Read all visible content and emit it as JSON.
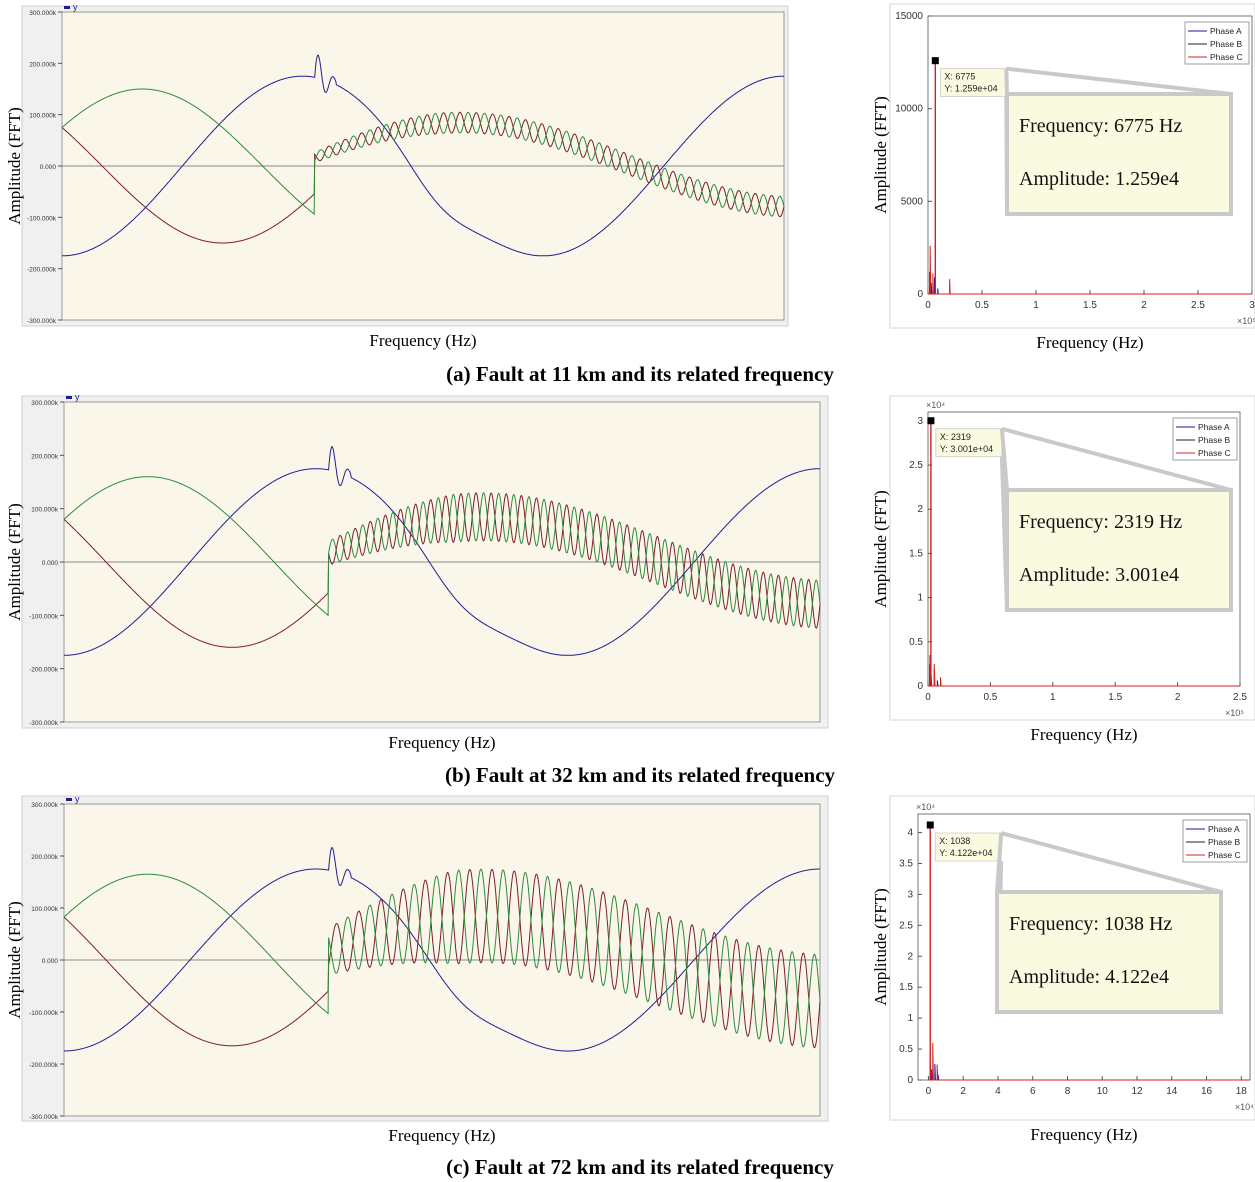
{
  "figure": {
    "panels": [
      {
        "caption": "(a) Fault at 11 km and its related frequency"
      },
      {
        "caption": "(b) Fault at 32 km and its related frequency"
      },
      {
        "caption": "(c) Fault at 72 km and its related frequency"
      }
    ]
  },
  "colors": {
    "phase_a": "#1f1f8f",
    "phase_b": "#7a1f2a",
    "phase_c": "#2e8b3a",
    "fft_a": "#1a1a9a",
    "fft_b": "#222222",
    "fft_c": "#d42020",
    "plot_bg": "#fbf6ea"
  },
  "chart_data": [
    {
      "type": "line",
      "ylabel": "Amplitude (FFT)",
      "xlabel": "Frequency (Hz)",
      "y_tick_labels": [
        "300.000k",
        "200.000k",
        "100.000k",
        "0.000",
        "-100.000k",
        "-200.000k",
        "-300.000k"
      ],
      "ylim": [
        -300,
        300
      ],
      "y_units": "k",
      "legend": "y",
      "series": [
        {
          "color_key": "phase_a",
          "amplitude": 175,
          "phase_deg": -90
        },
        {
          "color_key": "phase_b",
          "amplitude": 150,
          "phase_deg": 150
        },
        {
          "color_key": "phase_c",
          "amplitude": 150,
          "phase_deg": 30
        }
      ],
      "fault_fraction": 0.35,
      "osc_cycles": 44,
      "osc_amplitude": 20,
      "grid": false
    },
    {
      "type": "line",
      "xlabel": "Frequency (Hz)",
      "ylabel": "Amplitude (FFT)",
      "x_tick_labels": [
        "0",
        "0.5",
        "1",
        "1.5",
        "2",
        "2.5",
        "3"
      ],
      "x_multiplier": "×10⁵",
      "xlim": [
        0,
        3
      ],
      "y_tick_labels": [
        "0",
        "5000",
        "10000",
        "15000"
      ],
      "ylim": [
        0,
        15000
      ],
      "y_multiplier": "",
      "legend": [
        "Phase A",
        "Phase B",
        "Phase C"
      ],
      "legend_position": "top-right",
      "peak_x": 0.06775,
      "peak_y": 12590,
      "datatip": [
        "X: 6775",
        "Y: 1.259e+04"
      ],
      "annotation": [
        "Frequency: 6775 Hz",
        "Amplitude: 1.259e4"
      ],
      "secondary_spikes": [
        [
          0.02,
          2600
        ],
        [
          0.045,
          1100
        ],
        [
          0.2,
          800
        ]
      ]
    },
    {
      "type": "line",
      "ylabel": "Amplitude (FFT)",
      "xlabel": "Frequency (Hz)",
      "y_tick_labels": [
        "300.000k",
        "200.000k",
        "100.000k",
        "0.000",
        "-100.000k",
        "-200.000k",
        "-300.000k"
      ],
      "ylim": [
        -300,
        300
      ],
      "y_units": "k",
      "legend": "y",
      "series": [
        {
          "color_key": "phase_a",
          "amplitude": 175,
          "phase_deg": -90
        },
        {
          "color_key": "phase_b",
          "amplitude": 160,
          "phase_deg": 150
        },
        {
          "color_key": "phase_c",
          "amplitude": 160,
          "phase_deg": 30
        }
      ],
      "fault_fraction": 0.35,
      "osc_cycles": 50,
      "osc_amplitude": 45,
      "grid": false
    },
    {
      "type": "line",
      "xlabel": "Frequency (Hz)",
      "ylabel": "Amplitude (FFT)",
      "x_tick_labels": [
        "0",
        "0.5",
        "1",
        "1.5",
        "2",
        "2.5"
      ],
      "x_multiplier": "×10⁵",
      "xlim": [
        0,
        2.5
      ],
      "y_tick_labels": [
        "0",
        "0.5",
        "1",
        "1.5",
        "2",
        "2.5",
        "3"
      ],
      "ylim": [
        0,
        3.1
      ],
      "y_multiplier": "×10⁴",
      "legend": [
        "Phase A",
        "Phase B",
        "Phase C"
      ],
      "legend_position": "top-right",
      "peak_x": 0.02319,
      "peak_y": 3.001,
      "datatip": [
        "X: 2319",
        "Y: 3.001e+04"
      ],
      "annotation": [
        "Frequency: 2319 Hz",
        "Amplitude: 3.001e4"
      ],
      "secondary_spikes": [
        [
          0.015,
          0.35
        ],
        [
          0.05,
          0.25
        ],
        [
          0.1,
          0.1
        ]
      ]
    },
    {
      "type": "line",
      "ylabel": "Amplitude (FFT)",
      "xlabel": "Frequency (Hz)",
      "y_tick_labels": [
        "300.000k",
        "200.000k",
        "100.000k",
        "0.000",
        "-100.000k",
        "-200.000k",
        "-300.000k"
      ],
      "ylim": [
        -300,
        300
      ],
      "y_units": "k",
      "legend": "y",
      "series": [
        {
          "color_key": "phase_a",
          "amplitude": 175,
          "phase_deg": -90
        },
        {
          "color_key": "phase_b",
          "amplitude": 165,
          "phase_deg": 150
        },
        {
          "color_key": "phase_c",
          "amplitude": 165,
          "phase_deg": 30
        }
      ],
      "fault_fraction": 0.35,
      "osc_cycles": 34,
      "osc_amplitude": 90,
      "grid": false
    },
    {
      "type": "line",
      "xlabel": "Frequency (Hz)",
      "ylabel": "Amplitude (FFT)",
      "x_tick_labels": [
        "0",
        "2",
        "4",
        "6",
        "8",
        "10",
        "12",
        "14",
        "16",
        "18"
      ],
      "x_multiplier": "×10⁴",
      "xlim": [
        -0.6,
        18.5
      ],
      "x_tick_values": [
        0,
        2,
        4,
        6,
        8,
        10,
        12,
        14,
        16,
        18
      ],
      "y_tick_labels": [
        "0",
        "0.5",
        "1",
        "1.5",
        "2",
        "2.5",
        "3",
        "3.5",
        "4"
      ],
      "ylim": [
        0,
        4.3
      ],
      "y_multiplier": "×10⁴",
      "legend": [
        "Phase A",
        "Phase B",
        "Phase C"
      ],
      "legend_position": "top-right",
      "peak_x": 0.1038,
      "peak_y": 4.122,
      "datatip": [
        "X: 1038",
        "Y: 4.122e+04"
      ],
      "annotation": [
        "Frequency: 1038 Hz",
        "Amplitude: 4.122e4"
      ],
      "secondary_spikes": [
        [
          0.25,
          0.6
        ],
        [
          0.5,
          0.25
        ]
      ]
    }
  ]
}
